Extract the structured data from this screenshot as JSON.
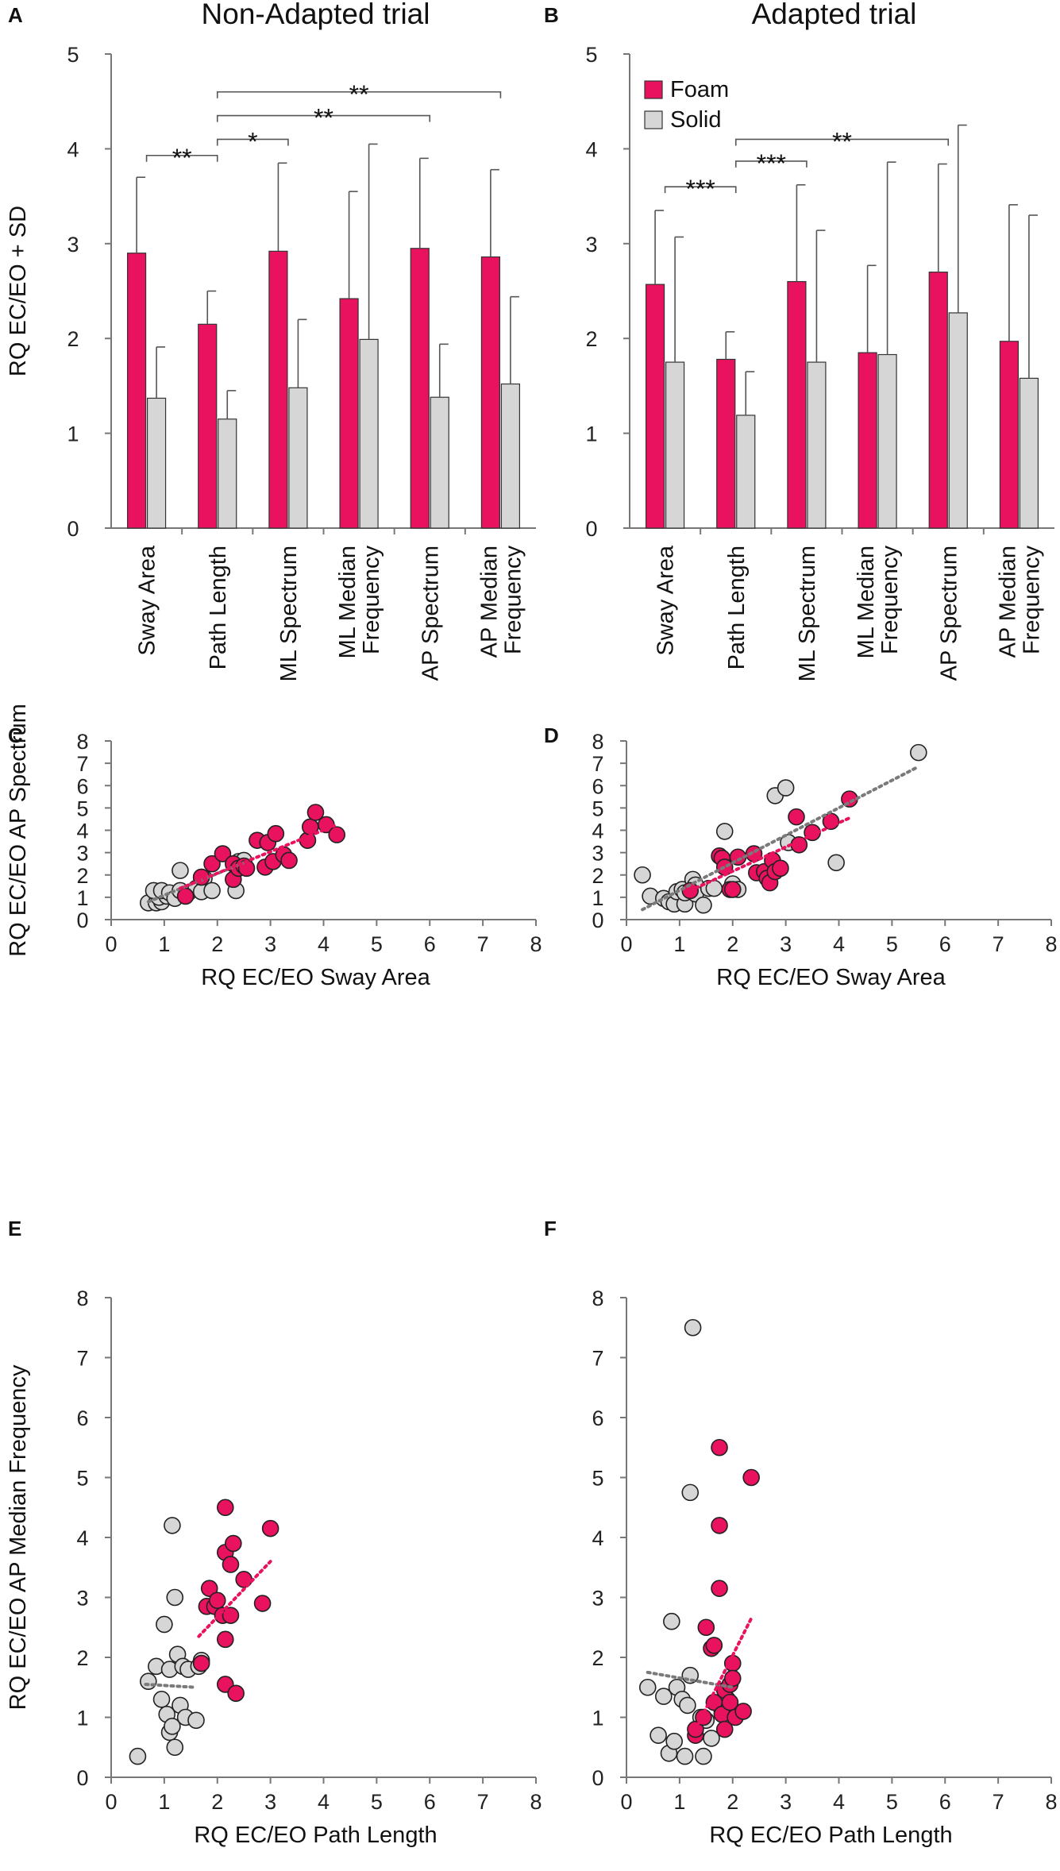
{
  "colors": {
    "foam": "#e8125e",
    "solid": "#d6d6d6",
    "trend_foam": "#e8125e",
    "trend_solid": "#7a7a7a"
  },
  "chart_data": [
    {
      "panel": "A",
      "type": "bar",
      "title": "Non-Adapted trial",
      "ylabel": "RQ EC/EO + SD",
      "ylim": [
        0,
        5
      ],
      "yticks": [
        "0",
        "1",
        "2",
        "3",
        "4",
        "5"
      ],
      "categories": [
        "Sway Area",
        "Path Length",
        "ML Spectrum",
        "ML Median Frequency",
        "AP Spectrum",
        "AP Median Frequency"
      ],
      "category_lines": [
        [
          "Sway Area"
        ],
        [
          "Path Length"
        ],
        [
          "ML Spectrum"
        ],
        [
          "ML Median",
          "Frequency"
        ],
        [
          "AP Spectrum"
        ],
        [
          "AP Median",
          "Frequency"
        ]
      ],
      "series": [
        {
          "name": "Foam",
          "values": [
            2.9,
            2.15,
            2.92,
            2.42,
            2.95,
            2.86
          ],
          "sd_top": [
            3.7,
            2.5,
            3.85,
            3.55,
            3.9,
            3.78
          ]
        },
        {
          "name": "Solid",
          "values": [
            1.37,
            1.15,
            1.48,
            1.99,
            1.38,
            1.52
          ],
          "sd_top": [
            1.91,
            1.45,
            2.2,
            4.05,
            1.94,
            2.44
          ]
        }
      ],
      "significance": [
        {
          "from": 0,
          "to": 1,
          "y": 3.93,
          "label": "**"
        },
        {
          "from": 1,
          "to": 2,
          "y": 4.1,
          "label": "*"
        },
        {
          "from": 1,
          "to": 4,
          "y": 4.35,
          "label": "**"
        },
        {
          "from": 1,
          "to": 5,
          "y": 4.6,
          "label": "**"
        }
      ]
    },
    {
      "panel": "B",
      "type": "bar",
      "title": "Adapted trial",
      "ylabel": "",
      "ylim": [
        0,
        5
      ],
      "yticks": [
        "0",
        "1",
        "2",
        "3",
        "4",
        "5"
      ],
      "legend": [
        "Foam",
        "Solid"
      ],
      "categories": [
        "Sway Area",
        "Path Length",
        "ML Spectrum",
        "ML Median Frequency",
        "AP Spectrum",
        "AP Median Frequency"
      ],
      "category_lines": [
        [
          "Sway Area"
        ],
        [
          "Path Length"
        ],
        [
          "ML Spectrum"
        ],
        [
          "ML Median",
          "Frequency"
        ],
        [
          "AP Spectrum"
        ],
        [
          "AP Median",
          "Frequency"
        ]
      ],
      "series": [
        {
          "name": "Foam",
          "values": [
            2.57,
            1.78,
            2.6,
            1.85,
            2.7,
            1.97
          ],
          "sd_top": [
            3.35,
            2.07,
            3.62,
            2.77,
            3.84,
            3.41
          ]
        },
        {
          "name": "Solid",
          "values": [
            1.75,
            1.19,
            1.75,
            1.83,
            2.27,
            1.58
          ],
          "sd_top": [
            3.07,
            1.65,
            3.14,
            3.86,
            4.25,
            3.3
          ]
        }
      ],
      "significance": [
        {
          "from": 0,
          "to": 1,
          "y": 3.6,
          "label": "***"
        },
        {
          "from": 1,
          "to": 2,
          "y": 3.87,
          "label": "***"
        },
        {
          "from": 1,
          "to": 4,
          "y": 4.1,
          "label": "**"
        }
      ]
    },
    {
      "panel": "C",
      "type": "scatter",
      "xlabel": "RQ EC/EO Sway Area",
      "ylabel": "RQ EC/EO AP Spectrum",
      "xlim": [
        0,
        8
      ],
      "ylim": [
        0,
        8
      ],
      "ticks": [
        "0",
        "1",
        "2",
        "3",
        "4",
        "5",
        "6",
        "7",
        "8"
      ],
      "series": [
        {
          "name": "Solid",
          "points": [
            [
              0.7,
              0.75
            ],
            [
              0.85,
              0.75
            ],
            [
              0.95,
              0.8
            ],
            [
              0.9,
              1.0
            ],
            [
              1.05,
              1.05
            ],
            [
              0.8,
              1.3
            ],
            [
              0.95,
              1.3
            ],
            [
              1.1,
              1.2
            ],
            [
              1.2,
              0.95
            ],
            [
              1.3,
              1.3
            ],
            [
              1.3,
              2.2
            ],
            [
              1.45,
              1.2
            ],
            [
              1.6,
              1.4
            ],
            [
              1.7,
              1.9
            ],
            [
              1.75,
              1.85
            ],
            [
              1.7,
              1.25
            ],
            [
              1.9,
              1.3
            ],
            [
              2.35,
              1.3
            ],
            [
              2.4,
              2.6
            ],
            [
              2.5,
              2.65
            ]
          ],
          "trend": [
            [
              0.7,
              0.8
            ],
            [
              2.5,
              2.55
            ]
          ]
        },
        {
          "name": "Foam",
          "points": [
            [
              1.4,
              1.05
            ],
            [
              1.7,
              1.9
            ],
            [
              1.9,
              2.5
            ],
            [
              2.1,
              2.95
            ],
            [
              2.3,
              1.8
            ],
            [
              2.3,
              2.5
            ],
            [
              2.4,
              2.3
            ],
            [
              2.5,
              2.4
            ],
            [
              2.55,
              2.3
            ],
            [
              2.75,
              3.55
            ],
            [
              2.9,
              2.35
            ],
            [
              2.95,
              3.45
            ],
            [
              3.05,
              2.6
            ],
            [
              3.1,
              3.85
            ],
            [
              3.25,
              2.9
            ],
            [
              3.35,
              2.65
            ],
            [
              3.7,
              3.55
            ],
            [
              3.75,
              4.15
            ],
            [
              3.85,
              4.8
            ],
            [
              4.05,
              4.25
            ],
            [
              4.25,
              3.8
            ]
          ],
          "trend": [
            [
              1.3,
              1.4
            ],
            [
              4.2,
              4.2
            ]
          ]
        }
      ]
    },
    {
      "panel": "D",
      "type": "scatter",
      "xlabel": "RQ EC/EO Sway Area",
      "ylabel": "",
      "xlim": [
        0,
        8
      ],
      "ylim": [
        0,
        8
      ],
      "ticks": [
        "0",
        "1",
        "2",
        "3",
        "4",
        "5",
        "6",
        "7",
        "8"
      ],
      "series": [
        {
          "name": "Solid",
          "points": [
            [
              0.3,
              2.0
            ],
            [
              0.45,
              1.05
            ],
            [
              0.7,
              0.95
            ],
            [
              0.8,
              0.8
            ],
            [
              0.9,
              0.7
            ],
            [
              0.95,
              1.25
            ],
            [
              1.05,
              1.35
            ],
            [
              1.1,
              0.7
            ],
            [
              1.1,
              1.2
            ],
            [
              1.25,
              1.8
            ],
            [
              1.3,
              1.55
            ],
            [
              1.3,
              1.15
            ],
            [
              1.45,
              0.65
            ],
            [
              1.55,
              1.4
            ],
            [
              1.65,
              1.4
            ],
            [
              1.85,
              3.95
            ],
            [
              2.0,
              1.6
            ],
            [
              2.1,
              1.35
            ],
            [
              2.8,
              5.55
            ],
            [
              3.0,
              5.9
            ],
            [
              3.05,
              3.45
            ],
            [
              3.95,
              2.55
            ],
            [
              5.5,
              7.48
            ]
          ],
          "trend": [
            [
              0.3,
              0.45
            ],
            [
              5.5,
              6.85
            ]
          ]
        },
        {
          "name": "Foam",
          "points": [
            [
              1.2,
              1.3
            ],
            [
              1.75,
              2.85
            ],
            [
              1.8,
              2.75
            ],
            [
              1.85,
              2.35
            ],
            [
              1.95,
              1.35
            ],
            [
              2.0,
              1.35
            ],
            [
              2.1,
              2.8
            ],
            [
              2.4,
              2.95
            ],
            [
              2.45,
              2.1
            ],
            [
              2.6,
              2.15
            ],
            [
              2.65,
              1.85
            ],
            [
              2.7,
              1.65
            ],
            [
              2.75,
              2.65
            ],
            [
              2.8,
              2.15
            ],
            [
              2.9,
              2.3
            ],
            [
              3.2,
              4.6
            ],
            [
              3.25,
              3.35
            ],
            [
              3.5,
              3.9
            ],
            [
              3.85,
              4.4
            ],
            [
              4.2,
              5.4
            ]
          ],
          "trend": [
            [
              1.2,
              1.3
            ],
            [
              4.2,
              4.55
            ]
          ]
        }
      ]
    },
    {
      "panel": "E",
      "type": "scatter",
      "xlabel": "RQ EC/EO Path Length",
      "ylabel": "RQ EC/EO AP Median Frequency",
      "xlim": [
        0,
        8
      ],
      "ylim": [
        0,
        8
      ],
      "ticks": [
        "0",
        "1",
        "2",
        "3",
        "4",
        "5",
        "6",
        "7",
        "8"
      ],
      "series": [
        {
          "name": "Solid",
          "points": [
            [
              0.5,
              0.35
            ],
            [
              0.7,
              1.6
            ],
            [
              0.85,
              1.85
            ],
            [
              0.95,
              1.3
            ],
            [
              1.0,
              2.55
            ],
            [
              1.05,
              1.05
            ],
            [
              1.1,
              0.75
            ],
            [
              1.1,
              1.8
            ],
            [
              1.15,
              0.85
            ],
            [
              1.15,
              4.2
            ],
            [
              1.2,
              3.0
            ],
            [
              1.2,
              0.5
            ],
            [
              1.25,
              2.05
            ],
            [
              1.3,
              1.2
            ],
            [
              1.35,
              1.85
            ],
            [
              1.4,
              1.0
            ],
            [
              1.45,
              1.8
            ],
            [
              1.6,
              0.95
            ],
            [
              1.65,
              1.85
            ],
            [
              1.7,
              1.95
            ]
          ],
          "trend": [
            [
              0.65,
              1.55
            ],
            [
              1.6,
              1.5
            ]
          ]
        },
        {
          "name": "Foam",
          "points": [
            [
              1.7,
              1.9
            ],
            [
              1.8,
              2.85
            ],
            [
              1.85,
              3.15
            ],
            [
              1.95,
              2.85
            ],
            [
              2.0,
              2.95
            ],
            [
              2.1,
              2.7
            ],
            [
              2.15,
              2.3
            ],
            [
              2.15,
              1.55
            ],
            [
              2.15,
              3.75
            ],
            [
              2.15,
              4.5
            ],
            [
              2.25,
              3.55
            ],
            [
              2.25,
              2.7
            ],
            [
              2.3,
              3.9
            ],
            [
              2.35,
              1.4
            ],
            [
              2.5,
              3.3
            ],
            [
              2.85,
              2.9
            ],
            [
              3.0,
              4.15
            ]
          ],
          "trend": [
            [
              1.65,
              2.35
            ],
            [
              3.0,
              3.6
            ]
          ]
        }
      ]
    },
    {
      "panel": "F",
      "type": "scatter",
      "xlabel": "RQ EC/EO Path Length",
      "ylabel": "",
      "xlim": [
        0,
        8
      ],
      "ylim": [
        0,
        8
      ],
      "ticks": [
        "0",
        "1",
        "2",
        "3",
        "4",
        "5",
        "6",
        "7",
        "8"
      ],
      "series": [
        {
          "name": "Solid",
          "points": [
            [
              0.4,
              1.5
            ],
            [
              0.6,
              0.7
            ],
            [
              0.7,
              1.35
            ],
            [
              0.8,
              0.4
            ],
            [
              0.85,
              2.6
            ],
            [
              0.9,
              0.6
            ],
            [
              0.95,
              1.5
            ],
            [
              1.05,
              1.3
            ],
            [
              1.1,
              0.35
            ],
            [
              1.15,
              1.2
            ],
            [
              1.2,
              4.75
            ],
            [
              1.2,
              1.7
            ],
            [
              1.25,
              7.5
            ],
            [
              1.4,
              1.0
            ],
            [
              1.45,
              0.35
            ],
            [
              1.5,
              0.95
            ],
            [
              1.6,
              0.65
            ],
            [
              1.8,
              1.1
            ],
            [
              1.9,
              1.3
            ]
          ],
          "trend": [
            [
              0.4,
              1.75
            ],
            [
              2.0,
              1.5
            ]
          ]
        },
        {
          "name": "Foam",
          "points": [
            [
              1.3,
              0.7
            ],
            [
              1.3,
              0.8
            ],
            [
              1.45,
              1.0
            ],
            [
              1.5,
              2.5
            ],
            [
              1.6,
              2.15
            ],
            [
              1.65,
              2.2
            ],
            [
              1.65,
              1.25
            ],
            [
              1.75,
              5.5
            ],
            [
              1.75,
              4.2
            ],
            [
              1.75,
              3.15
            ],
            [
              1.8,
              1.05
            ],
            [
              1.85,
              0.8
            ],
            [
              1.85,
              1.45
            ],
            [
              1.95,
              1.25
            ],
            [
              1.95,
              1.55
            ],
            [
              2.0,
              1.9
            ],
            [
              2.0,
              1.65
            ],
            [
              2.05,
              1.0
            ],
            [
              2.2,
              1.1
            ],
            [
              2.35,
              5.0
            ]
          ],
          "trend": [
            [
              1.3,
              0.8
            ],
            [
              2.35,
              2.65
            ]
          ]
        }
      ]
    }
  ]
}
